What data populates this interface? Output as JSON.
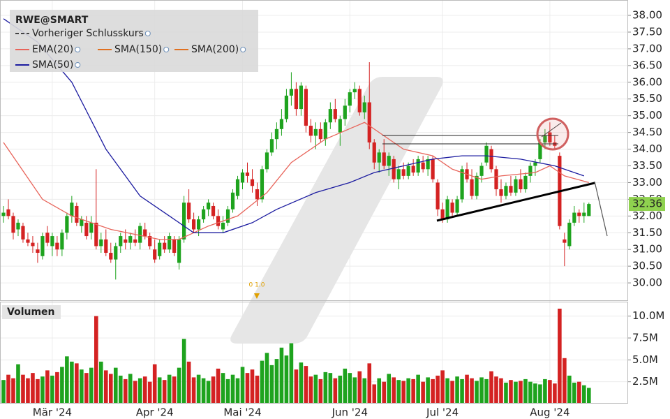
{
  "chart_data": {
    "type": "candlestick",
    "title": "RWE@SMART",
    "open": [
      32.0,
      32.2,
      32.0,
      31.6,
      31.7,
      31.3,
      31.2,
      31.0,
      30.8,
      31.5,
      31.1,
      31.2,
      31.0,
      31.5,
      32.0,
      32.3,
      31.7,
      31.8,
      31.5,
      31.8,
      31.1,
      31.3,
      30.9,
      30.7,
      31.1,
      31.3,
      31.2,
      31.3,
      31.2,
      31.6,
      31.4,
      31.0,
      30.8,
      31.2,
      31.0,
      31.3,
      30.6,
      31.3,
      32.4,
      31.9,
      31.6,
      31.9,
      32.2,
      32.3,
      32.0,
      31.6,
      31.8,
      32.2,
      32.6,
      33.0,
      33.3,
      33.1,
      32.8,
      32.5,
      33.4,
      33.9,
      34.3,
      34.6,
      34.9,
      35.6,
      35.8,
      35.2,
      35.8,
      34.7,
      34.4,
      34.6,
      34.3,
      34.8,
      35.2,
      34.5,
      34.9,
      35.3,
      35.7,
      35.8,
      35.1,
      35.4,
      34.2,
      33.6,
      33.9,
      33.5,
      33.7,
      33.1,
      33.4,
      33.2,
      33.5,
      33.3,
      33.6,
      33.4,
      33.7,
      33.0,
      32.2,
      31.9,
      32.4,
      32.1,
      32.5,
      33.4,
      33.1,
      32.6,
      33.2,
      33.6,
      34.0,
      33.4,
      32.8,
      32.6,
      32.9,
      32.7,
      33.1,
      32.8,
      33.2,
      33.5,
      33.7,
      34.2,
      34.5,
      34.2,
      33.8,
      31.3,
      31.1,
      31.8,
      32.1,
      32.0,
      32.0
    ],
    "high": [
      32.3,
      32.5,
      32.1,
      31.9,
      31.8,
      31.5,
      31.4,
      31.2,
      31.5,
      31.7,
      31.5,
      31.4,
      31.6,
      32.1,
      32.6,
      32.4,
      32.0,
      32.0,
      32.0,
      33.4,
      31.5,
      31.6,
      31.2,
      31.2,
      31.5,
      31.6,
      31.5,
      31.6,
      31.8,
      31.8,
      31.5,
      31.3,
      31.3,
      31.4,
      31.5,
      31.4,
      31.4,
      32.6,
      32.8,
      32.1,
      32.0,
      32.3,
      32.5,
      32.4,
      32.2,
      32.0,
      32.3,
      32.8,
      33.2,
      33.4,
      33.6,
      33.4,
      33.0,
      33.5,
      34.0,
      34.5,
      34.8,
      35.2,
      35.8,
      36.3,
      36.0,
      36.0,
      35.9,
      34.9,
      34.8,
      34.8,
      34.9,
      35.4,
      35.5,
      35.0,
      35.5,
      35.8,
      36.0,
      35.9,
      35.6,
      36.6,
      34.3,
      34.0,
      34.3,
      33.9,
      33.8,
      33.5,
      33.6,
      33.6,
      33.7,
      33.8,
      33.8,
      33.8,
      33.8,
      33.1,
      32.4,
      32.6,
      32.5,
      32.6,
      33.5,
      33.6,
      33.4,
      33.3,
      33.6,
      34.2,
      34.1,
      33.5,
      33.1,
      33.0,
      33.2,
      33.2,
      33.4,
      33.3,
      33.6,
      33.7,
      34.3,
      34.6,
      34.8,
      34.4,
      33.9,
      31.5,
      31.9,
      32.3,
      32.2,
      32.4,
      32.4
    ],
    "low": [
      31.8,
      31.9,
      31.3,
      31.4,
      31.2,
      31.1,
      30.9,
      30.6,
      30.7,
      31.1,
      30.8,
      30.8,
      30.8,
      31.3,
      31.8,
      31.7,
      31.5,
      31.3,
      31.3,
      31.0,
      30.9,
      30.8,
      30.6,
      30.1,
      30.9,
      31.0,
      31.0,
      31.1,
      31.0,
      31.3,
      31.0,
      30.6,
      30.7,
      30.9,
      30.9,
      30.8,
      30.4,
      31.2,
      31.8,
      31.5,
      31.4,
      31.8,
      32.0,
      31.9,
      31.6,
      31.5,
      31.7,
      32.1,
      32.5,
      32.8,
      33.0,
      32.7,
      32.3,
      32.4,
      33.3,
      33.8,
      34.0,
      34.4,
      34.8,
      35.3,
      35.0,
      35.0,
      34.5,
      34.2,
      34.0,
      34.2,
      34.1,
      34.6,
      34.8,
      34.1,
      34.7,
      35.1,
      35.5,
      35.0,
      34.9,
      34.0,
      33.4,
      33.3,
      33.4,
      33.2,
      33.0,
      32.8,
      33.1,
      33.1,
      33.2,
      33.2,
      33.3,
      33.2,
      33.0,
      32.0,
      31.8,
      31.8,
      32.0,
      32.0,
      32.4,
      33.0,
      32.5,
      32.5,
      33.0,
      33.5,
      33.3,
      32.6,
      32.4,
      32.5,
      32.6,
      32.6,
      32.7,
      32.7,
      33.0,
      33.2,
      33.6,
      34.0,
      34.1,
      34.0,
      31.6,
      30.5,
      31.0,
      31.7,
      31.8,
      31.8,
      32.0
    ],
    "close": [
      32.1,
      32.0,
      31.5,
      31.8,
      31.3,
      31.2,
      31.1,
      30.9,
      31.4,
      31.2,
      31.4,
      31.0,
      31.5,
      32.0,
      32.4,
      31.8,
      31.9,
      31.4,
      31.8,
      31.1,
      31.3,
      30.9,
      30.7,
      31.1,
      31.4,
      31.2,
      31.4,
      31.2,
      31.7,
      31.4,
      31.1,
      30.7,
      31.2,
      31.0,
      31.4,
      30.9,
      31.3,
      32.4,
      31.9,
      31.6,
      31.9,
      32.2,
      32.4,
      32.0,
      31.7,
      31.8,
      32.2,
      32.7,
      33.1,
      33.3,
      33.2,
      32.9,
      32.5,
      33.4,
      33.9,
      34.3,
      34.6,
      34.9,
      35.6,
      35.8,
      35.2,
      35.9,
      34.7,
      34.4,
      34.6,
      34.3,
      34.8,
      35.2,
      34.9,
      34.9,
      35.3,
      35.7,
      35.8,
      35.1,
      35.4,
      34.2,
      33.6,
      33.9,
      33.5,
      33.8,
      33.1,
      33.4,
      33.2,
      33.5,
      33.3,
      33.7,
      33.4,
      33.7,
      33.1,
      32.2,
      31.9,
      32.5,
      32.1,
      32.5,
      33.4,
      33.1,
      32.6,
      33.2,
      33.5,
      34.1,
      33.4,
      32.8,
      32.6,
      32.9,
      32.7,
      33.1,
      32.8,
      33.2,
      33.5,
      33.6,
      34.2,
      34.4,
      34.2,
      34.1,
      31.7,
      31.2,
      31.8,
      32.1,
      32.0,
      32.1,
      32.36
    ],
    "up_color": "#1ea31e",
    "down_color": "#d42222",
    "series": [
      {
        "name": "Vorheriger Schlusskurs",
        "color": "#444444",
        "dash": true
      },
      {
        "name": "EMA(20)",
        "color": "#e8645a",
        "x": [
          0,
          8,
          14,
          22,
          32,
          36,
          42,
          48,
          54,
          59,
          66,
          74,
          77,
          82,
          88,
          92,
          98,
          102,
          109,
          112,
          115,
          120
        ],
        "values": [
          34.2,
          32.5,
          32.0,
          31.6,
          31.3,
          31.3,
          31.7,
          32.0,
          32.7,
          33.6,
          34.3,
          34.8,
          34.5,
          34.0,
          33.8,
          33.4,
          33.1,
          33.2,
          33.3,
          33.5,
          33.2,
          33.0
        ]
      },
      {
        "name": "SMA(150)",
        "color": "#e07020"
      },
      {
        "name": "SMA(200)",
        "color": "#e07020"
      },
      {
        "name": "SMA(50)",
        "color": "#1c1ca0",
        "x": [
          0,
          7,
          14,
          21,
          28,
          34,
          39,
          45,
          51,
          56,
          64,
          71,
          76,
          82,
          88,
          94,
          99,
          106,
          113,
          119
        ],
        "values": [
          37.9,
          37.2,
          36.0,
          34.0,
          32.6,
          32.0,
          31.5,
          31.5,
          31.8,
          32.2,
          32.7,
          33.0,
          33.3,
          33.5,
          33.7,
          33.8,
          33.8,
          33.7,
          33.5,
          33.2
        ]
      }
    ],
    "ylim": [
      29.48,
      38.46
    ],
    "yticks": [
      {
        "value": 30,
        "label": "30.00"
      },
      {
        "value": 30.5,
        "label": "30.50"
      },
      {
        "value": 31,
        "label": "31.00"
      },
      {
        "value": 31.5,
        "label": "31.50"
      },
      {
        "value": 32,
        "label": "32.00"
      },
      {
        "value": 32.5,
        "label": "32.50"
      },
      {
        "value": 33,
        "label": "33.00"
      },
      {
        "value": 33.5,
        "label": "33.50"
      },
      {
        "value": 34,
        "label": "34.00"
      },
      {
        "value": 34.5,
        "label": "34.50"
      },
      {
        "value": 35,
        "label": "35.00"
      },
      {
        "value": 35.5,
        "label": "35.50"
      },
      {
        "value": 36,
        "label": "36.00"
      },
      {
        "value": 36.5,
        "label": "36.50"
      },
      {
        "value": 37,
        "label": "37.00"
      },
      {
        "value": 37.5,
        "label": "37.50"
      },
      {
        "value": 38,
        "label": "38.00"
      }
    ],
    "last_price": 32.36,
    "last_price_label": "32.36",
    "annotation": "0 1.0",
    "xticks": [
      {
        "value": 10,
        "label": "Mär '24"
      },
      {
        "value": 31,
        "label": "Apr '24"
      },
      {
        "value": 49,
        "label": "Mai '24"
      },
      {
        "value": 71,
        "label": "Jun '24"
      },
      {
        "value": 90,
        "label": "Jul '24"
      },
      {
        "value": 112,
        "label": "Aug '24"
      }
    ],
    "volume": {
      "label": "Volumen",
      "values": [
        2.7,
        3.3,
        2.9,
        4.5,
        3.3,
        2.9,
        3.5,
        2.8,
        3.1,
        3.8,
        3.2,
        3.6,
        4.2,
        5.4,
        4.8,
        4.6,
        3.9,
        3.5,
        4.1,
        10.0,
        4.8,
        3.8,
        3.4,
        4.1,
        3.2,
        2.8,
        3.4,
        2.6,
        2.9,
        3.1,
        2.5,
        4.5,
        3.0,
        2.7,
        3.3,
        3.1,
        4.1,
        7.4,
        4.8,
        3.0,
        3.3,
        2.9,
        2.6,
        3.1,
        4.0,
        3.5,
        2.8,
        3.3,
        2.9,
        4.2,
        3.5,
        3.9,
        3.2,
        4.9,
        5.8,
        4.4,
        5.1,
        6.4,
        5.5,
        6.9,
        3.9,
        4.7,
        4.3,
        3.1,
        3.3,
        2.8,
        3.6,
        3.5,
        2.9,
        3.2,
        4.0,
        3.5,
        3.0,
        3.7,
        2.9,
        4.6,
        2.2,
        2.9,
        2.5,
        3.4,
        3.0,
        2.7,
        2.6,
        2.9,
        2.8,
        3.3,
        2.5,
        3.0,
        2.8,
        3.2,
        3.8,
        2.9,
        2.6,
        3.1,
        2.8,
        3.3,
        2.9,
        2.6,
        3.0,
        2.8,
        3.7,
        3.1,
        2.9,
        2.4,
        2.7,
        2.5,
        2.6,
        2.8,
        2.5,
        2.3,
        2.2,
        2.8,
        2.7,
        2.3,
        10.85,
        5.2,
        3.2,
        2.4,
        2.5,
        2.1,
        1.8
      ],
      "ylim": [
        0,
        11.33
      ],
      "yticks": [
        {
          "value": 2.5,
          "label": "2.5M"
        },
        {
          "value": 5,
          "label": "5.0M"
        },
        {
          "value": 7.5,
          "label": "7.5M"
        },
        {
          "value": 10,
          "label": "10.0M"
        }
      ]
    }
  }
}
